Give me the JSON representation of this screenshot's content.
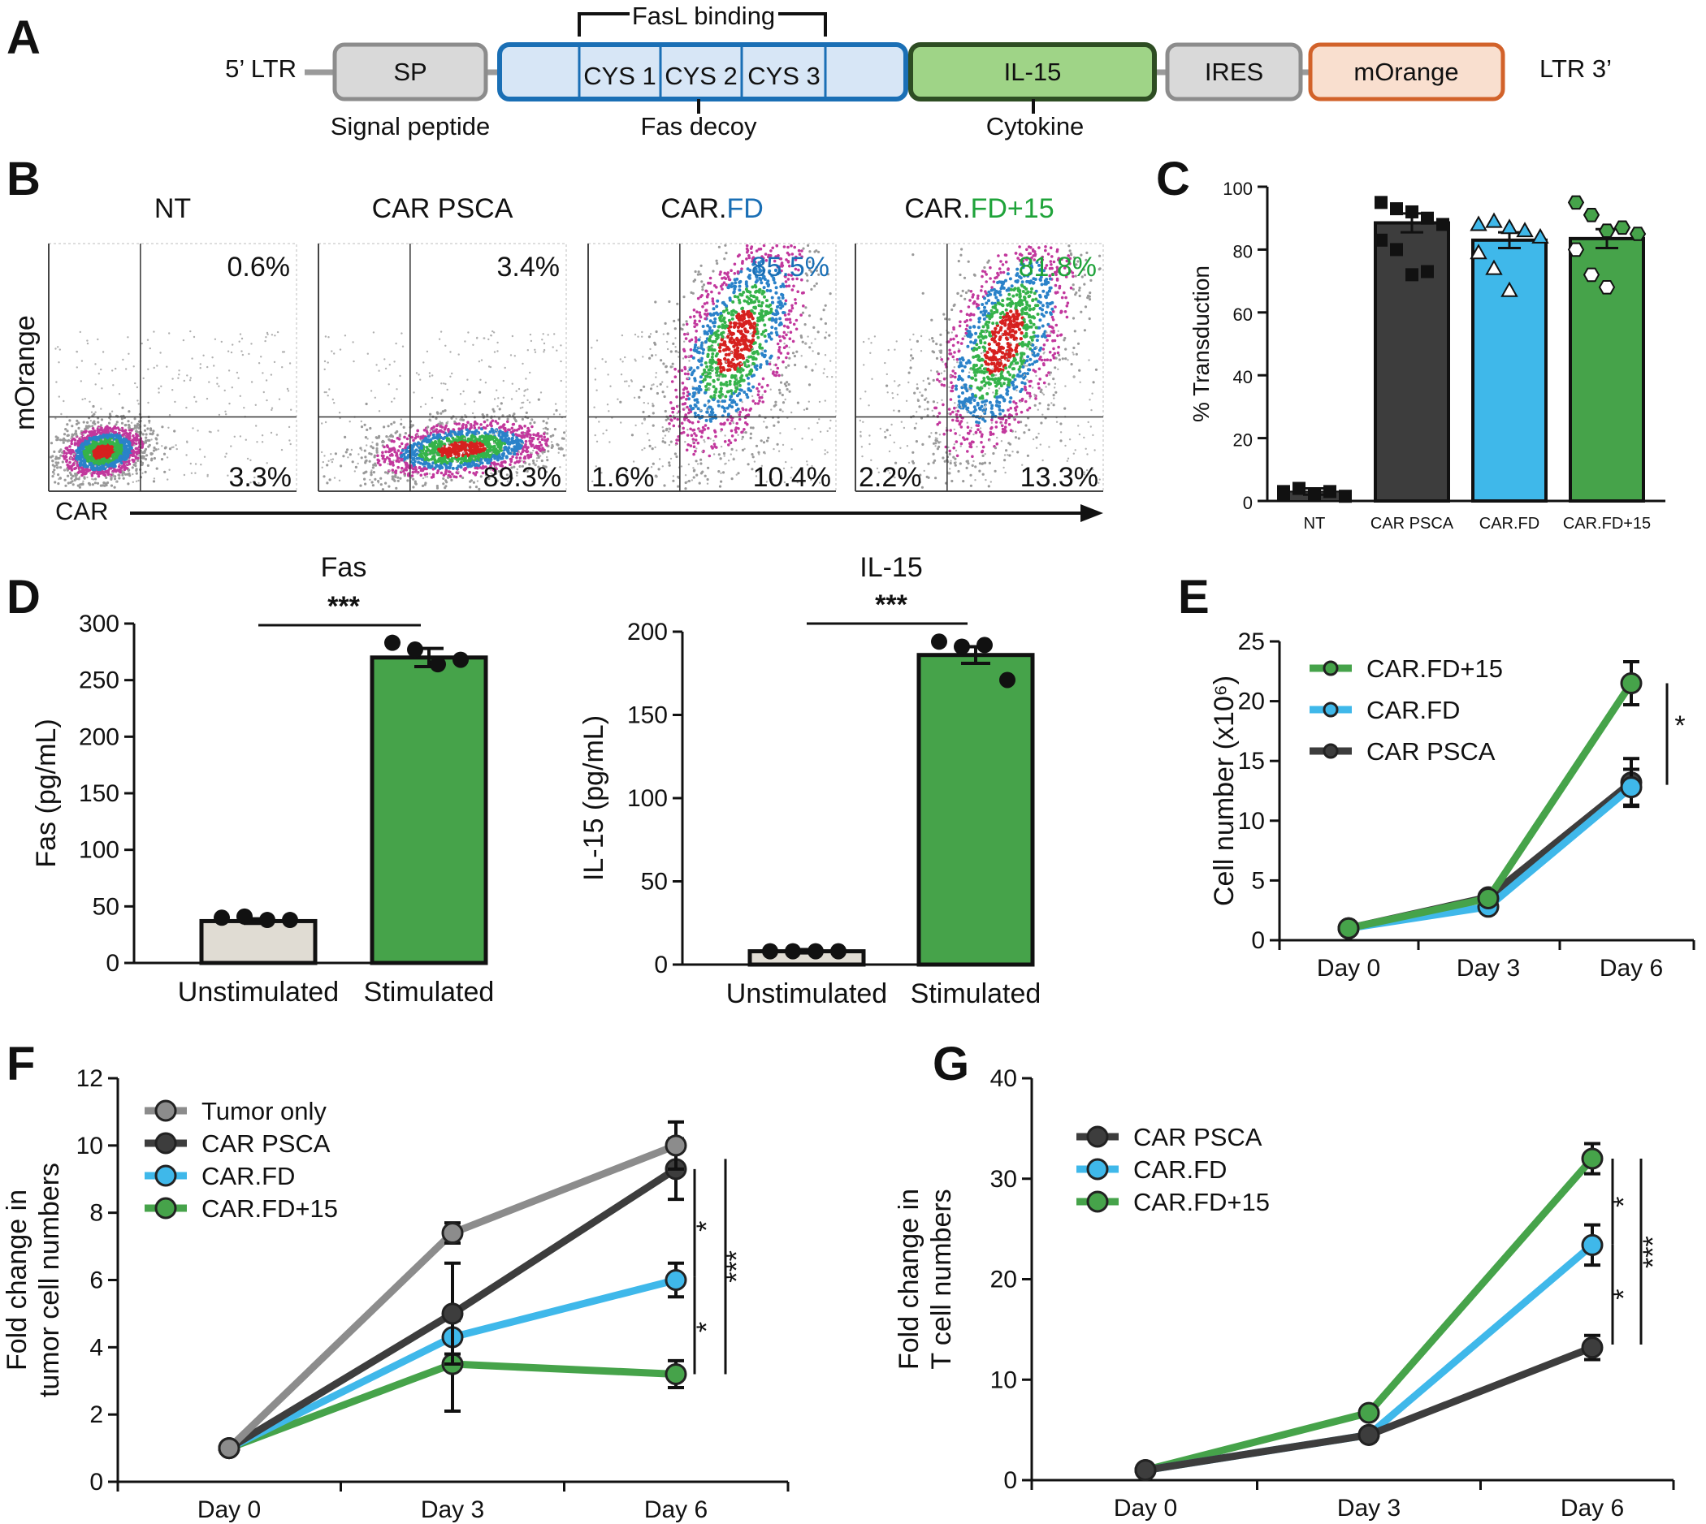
{
  "panels": {
    "A": "A",
    "B": "B",
    "C": "C",
    "D": "D",
    "E": "E",
    "F": "F",
    "G": "G"
  },
  "construct": {
    "ltr5": "5’ LTR",
    "ltr3": "LTR 3’",
    "fasl_binding": "FasL binding",
    "blocks": [
      {
        "text": "SP",
        "fill": "#d9d9d9",
        "stroke": "#8c8c8c"
      },
      {
        "text": "",
        "fill": "#d7e6f6",
        "stroke": "#1a6fb5"
      },
      {
        "text": "IL-15",
        "fill": "#9fd487",
        "stroke": "#2e4d23"
      },
      {
        "text": "IRES",
        "fill": "#d9d9d9",
        "stroke": "#8c8c8c"
      },
      {
        "text": "mOrange",
        "fill": "#f9dfcf",
        "stroke": "#d2622a"
      }
    ],
    "cys": [
      "CYS 1",
      "CYS 2",
      "CYS 3"
    ],
    "sublabels": [
      "Signal peptide",
      "Fas decoy",
      "Cytokine"
    ]
  },
  "flow": {
    "y_label": "mOrange",
    "x_label": "CAR",
    "plots": [
      {
        "title": "NT",
        "title_parts": [
          {
            "t": "NT",
            "c": "#111111"
          }
        ],
        "ur": "0.6%",
        "ur_color": "#111111",
        "lr": "3.3%",
        "ll": "",
        "mode": "nt"
      },
      {
        "title": "CAR PSCA",
        "title_parts": [
          {
            "t": "CAR PSCA",
            "c": "#111111"
          }
        ],
        "ur": "3.4%",
        "ur_color": "#111111",
        "lr": "89.3%",
        "ll": "",
        "mode": "psca"
      },
      {
        "title": "CAR.FD",
        "title_parts": [
          {
            "t": "CAR.",
            "c": "#111111"
          },
          {
            "t": "FD",
            "c": "#1a6fb5"
          }
        ],
        "ur": "85.5%",
        "ur_color": "#1a6fb5",
        "lr": "10.4%",
        "ll": "1.6%",
        "mode": "fd"
      },
      {
        "title": "CAR.FD+15",
        "title_parts": [
          {
            "t": "CAR.",
            "c": "#111111"
          },
          {
            "t": "FD+15",
            "c": "#1fa33a"
          }
        ],
        "ur": "81.8%",
        "ur_color": "#1fa33a",
        "lr": "13.3%",
        "ll": "2.2%",
        "mode": "fd15"
      }
    ]
  },
  "colors": {
    "dark": "#3d3d3d",
    "blue": "#3fb8ea",
    "green": "#46a34a",
    "gray": "#8c8c8c",
    "beige": "#e0dcd3",
    "blue_text": "#1a6fb5",
    "green_text": "#1fa33a"
  },
  "chart_data": [
    {
      "id": "C",
      "type": "bar",
      "categories": [
        "NT",
        "CAR PSCA",
        "CAR.FD",
        "CAR.FD+15"
      ],
      "values": [
        3,
        88.5,
        83,
        83.5
      ],
      "errors": [
        1,
        3,
        2.5,
        3
      ],
      "points": [
        [
          3,
          4,
          2,
          3,
          1.5,
          2,
          4
        ],
        [
          95,
          93,
          92,
          90,
          88,
          83,
          80,
          72,
          73
        ],
        [
          88,
          89,
          87,
          86,
          84,
          79,
          74,
          67
        ],
        [
          95,
          91,
          86,
          87,
          85,
          80,
          72,
          68
        ]
      ],
      "ylabel": "% Transduction",
      "ylim": [
        0,
        100
      ],
      "yticks": [
        0,
        20,
        40,
        60,
        80,
        100
      ]
    },
    {
      "id": "D1",
      "type": "bar",
      "title": "Fas",
      "categories": [
        "Unstimulated",
        "Stimulated"
      ],
      "values": [
        37,
        270
      ],
      "errors": [
        2,
        8
      ],
      "points": [
        [
          40,
          41,
          38,
          38
        ],
        [
          283,
          277,
          264,
          268
        ]
      ],
      "ylabel": "Fas (pg/mL)",
      "ylim": [
        0,
        300
      ],
      "yticks": [
        0,
        50,
        100,
        150,
        200,
        250,
        300
      ],
      "significance": "***"
    },
    {
      "id": "D2",
      "type": "bar",
      "title": "IL-15",
      "categories": [
        "Unstimulated",
        "Stimulated"
      ],
      "values": [
        8,
        186
      ],
      "errors": [
        1,
        5
      ],
      "points": [
        [
          8,
          8,
          8,
          8
        ],
        [
          194,
          191,
          192,
          171
        ]
      ],
      "ylabel": "IL-15  (pg/mL)",
      "ylim": [
        0,
        200
      ],
      "yticks": [
        0,
        50,
        100,
        150,
        200
      ],
      "significance": "***"
    },
    {
      "id": "E",
      "type": "line",
      "categories": [
        "Day 0",
        "Day 3",
        "Day 6"
      ],
      "ylabel": "Cell number (x10⁶)",
      "ylim": [
        0,
        25
      ],
      "yticks": [
        0,
        5,
        10,
        15,
        20,
        25
      ],
      "series": [
        {
          "name": "CAR.FD+15",
          "values": [
            1,
            3.5,
            21.5
          ],
          "errors": [
            0,
            0.3,
            1.8
          ],
          "color": "#46a34a"
        },
        {
          "name": "CAR.FD",
          "values": [
            1,
            2.8,
            12.8
          ],
          "errors": [
            0,
            0.3,
            1.5
          ],
          "color": "#3fb8ea"
        },
        {
          "name": "CAR PSCA",
          "values": [
            1,
            3.6,
            13.2
          ],
          "errors": [
            0,
            0.3,
            2.0
          ],
          "color": "#3d3d3d"
        }
      ],
      "significance": "*"
    },
    {
      "id": "F",
      "type": "line",
      "categories": [
        "Day 0",
        "Day 3",
        "Day 6"
      ],
      "ylabel": "Fold change in tumor cell numbers",
      "ylabel_lines": [
        "Fold change in",
        "tumor cell numbers"
      ],
      "ylim": [
        0,
        12
      ],
      "yticks": [
        0,
        2,
        4,
        6,
        8,
        10,
        12
      ],
      "series": [
        {
          "name": "Tumor only",
          "values": [
            1,
            7.4,
            10
          ],
          "errors": [
            0,
            0.3,
            0.7
          ],
          "color": "#8c8c8c"
        },
        {
          "name": "CAR PSCA",
          "values": [
            1,
            5,
            9.3
          ],
          "errors": [
            0,
            1.5,
            0.9
          ],
          "color": "#3d3d3d"
        },
        {
          "name": "CAR.FD",
          "values": [
            1,
            4.3,
            6
          ],
          "errors": [
            0,
            0.5,
            0.5
          ],
          "color": "#3fb8ea"
        },
        {
          "name": "CAR.FD+15",
          "values": [
            1,
            3.5,
            3.2
          ],
          "errors": [
            0,
            1.4,
            0.4
          ],
          "color": "#46a34a"
        }
      ],
      "significance": [
        "*",
        "*",
        "***"
      ]
    },
    {
      "id": "G",
      "type": "line",
      "categories": [
        "Day 0",
        "Day 3",
        "Day 6"
      ],
      "ylabel": "Fold change in T cell numbers",
      "ylabel_lines": [
        "Fold change in",
        "T cell numbers"
      ],
      "ylim": [
        0,
        40
      ],
      "yticks": [
        0,
        10,
        20,
        30,
        40
      ],
      "series": [
        {
          "name": "CAR PSCA",
          "values": [
            1,
            4.5,
            13.2
          ],
          "errors": [
            0,
            0.6,
            1.2
          ],
          "color": "#3d3d3d"
        },
        {
          "name": "CAR.FD",
          "values": [
            1,
            4.5,
            23.4
          ],
          "errors": [
            0,
            0.6,
            2.0
          ],
          "color": "#3fb8ea"
        },
        {
          "name": "CAR.FD+15",
          "values": [
            1,
            6.7,
            32
          ],
          "errors": [
            0,
            0.5,
            1.5
          ],
          "color": "#46a34a"
        }
      ],
      "significance": [
        "*",
        "*",
        "***"
      ]
    }
  ]
}
